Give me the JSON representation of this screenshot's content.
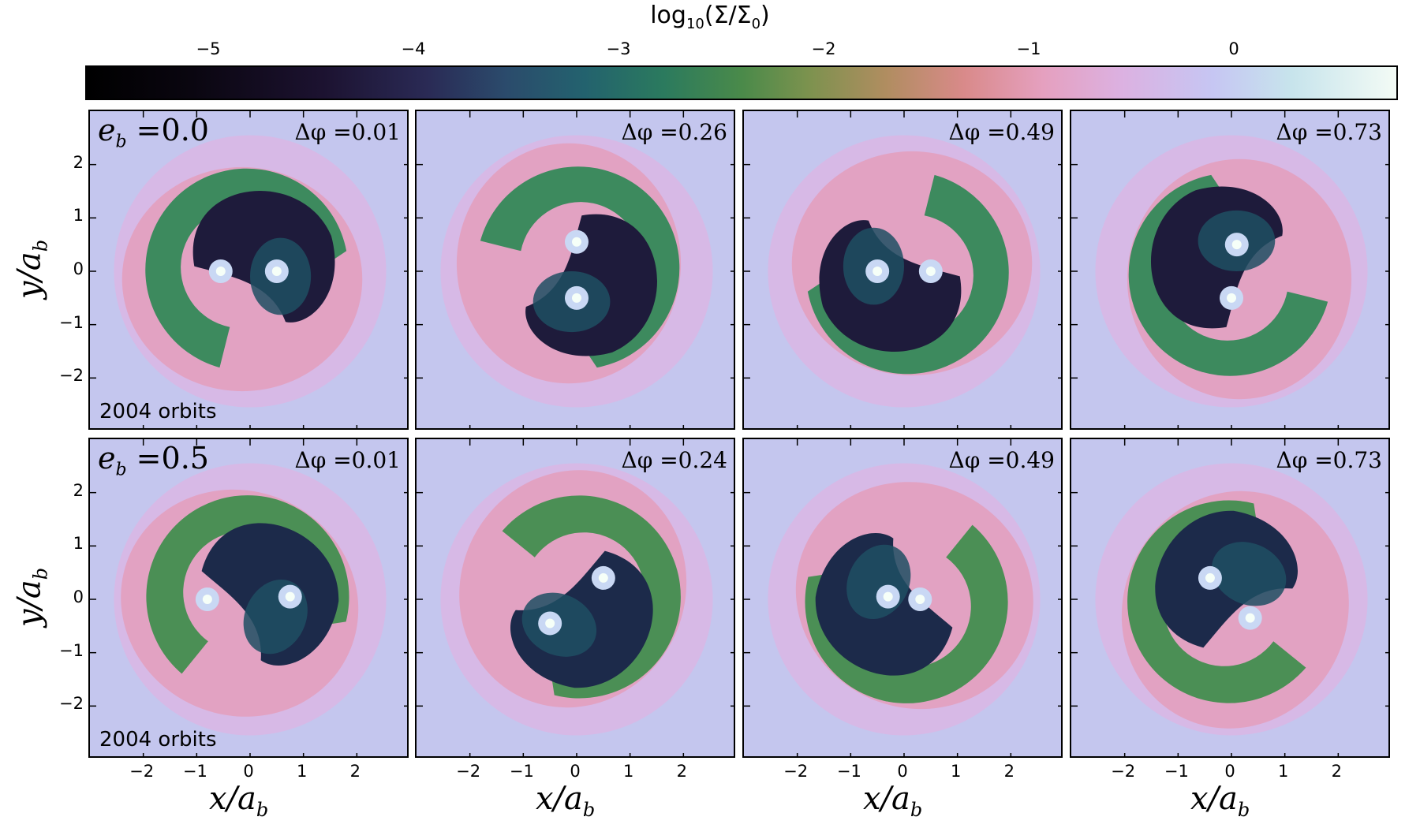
{
  "colorbar": {
    "title_prefix": "log",
    "title_sub": "10",
    "title_rest": "(Σ/Σ",
    "title_sub2": "0",
    "title_end": ")",
    "min": -5.6,
    "max": 0.8,
    "ticks": [
      "−5",
      "−4",
      "−3",
      "−2",
      "−1",
      "0"
    ],
    "tick_values": [
      -5,
      -4,
      -3,
      -2,
      -1,
      0
    ]
  },
  "axes": {
    "x_title_main": "x/a",
    "x_title_sub": "b",
    "y_title_main": "y/a",
    "y_title_sub": "b",
    "x_ticks": [
      "−2",
      "−1",
      "0",
      "1",
      "2"
    ],
    "y_ticks": [
      "2",
      "1",
      "0",
      "−1",
      "−2"
    ],
    "tick_values": [
      -2,
      -1,
      0,
      1,
      2
    ],
    "xlim": [
      -3,
      3
    ],
    "ylim": [
      -3,
      3
    ]
  },
  "chart_data": {
    "type": "heatmap",
    "rows": [
      {
        "eb_label_main": "e",
        "eb_label_sub": "b",
        "eb_label_value": " =0.0",
        "orbits_label": "2004 orbits",
        "panels": [
          {
            "dphi": "Δφ =0.01",
            "stars": [
              [
                -0.55,
                0.0
              ],
              [
                0.5,
                0.0
              ]
            ]
          },
          {
            "dphi": "Δφ =0.26",
            "stars": [
              [
                0.0,
                0.55
              ],
              [
                0.0,
                -0.5
              ]
            ]
          },
          {
            "dphi": "Δφ =0.49",
            "stars": [
              [
                -0.5,
                0.0
              ],
              [
                0.5,
                0.0
              ]
            ]
          },
          {
            "dphi": "Δφ =0.73",
            "stars": [
              [
                0.1,
                0.5
              ],
              [
                0.0,
                -0.5
              ]
            ]
          }
        ]
      },
      {
        "eb_label_main": "e",
        "eb_label_sub": "b",
        "eb_label_value": " =0.5",
        "orbits_label": "2004 orbits",
        "panels": [
          {
            "dphi": "Δφ =0.01",
            "stars": [
              [
                -0.8,
                0.0
              ],
              [
                0.75,
                0.05
              ]
            ]
          },
          {
            "dphi": "Δφ =0.24",
            "stars": [
              [
                -0.5,
                -0.45
              ],
              [
                0.5,
                0.4
              ]
            ]
          },
          {
            "dphi": "Δφ =0.49",
            "stars": [
              [
                -0.3,
                0.05
              ],
              [
                0.3,
                0.0
              ]
            ]
          },
          {
            "dphi": "Δφ =0.73",
            "stars": [
              [
                -0.4,
                0.4
              ],
              [
                0.35,
                -0.35
              ]
            ]
          }
        ]
      }
    ]
  },
  "colors": {
    "background": "#c4c6ee",
    "cavity": "#1d1a3a",
    "streams": "#3f8a5a",
    "pink": "#e3a4c4",
    "ring": "#d4c8f0"
  }
}
